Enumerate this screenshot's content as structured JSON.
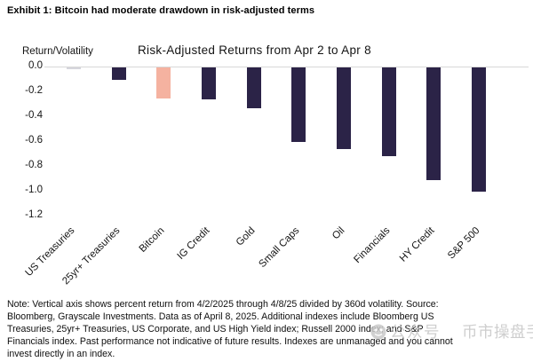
{
  "header": {
    "exhibit_title": "Exhibit 1: Bitcoin had moderate drawdown in risk-adjusted terms"
  },
  "chart_data": {
    "type": "bar",
    "title": "Risk-Adjusted Returns from Apr 2 to Apr 8",
    "ylabel": "Return/Volatility",
    "xlabel": "",
    "categories": [
      "US Treasuries",
      "25yr+ Treasuries",
      "Bitcoin",
      "IG Credit",
      "Gold",
      "Small Caps",
      "Oil",
      "Financials",
      "HY Credit",
      "S&P 500"
    ],
    "values": [
      0.0,
      -0.1,
      -0.25,
      -0.26,
      -0.33,
      -0.6,
      -0.66,
      -0.72,
      -0.91,
      -1.0
    ],
    "highlight_category": "Bitcoin",
    "ylim": [
      -1.2,
      0.0
    ],
    "yticks": [
      "0.0",
      "-0.2",
      "-0.4",
      "-0.6",
      "-0.8",
      "-1.0",
      "-1.2"
    ],
    "grid": "zero-line-only",
    "legend": "none",
    "colors": {
      "bar": "#2b2347",
      "highlight": "#f5b2a0",
      "zero_value_bar": "#d6d6dc",
      "zero_line": "#d8d8d8"
    }
  },
  "note": {
    "lines": [
      "Note: Vertical axis shows percent return from 4/2/2025 through 4/8/25 divided by 360d volatility. Source:",
      "Bloomberg, Grayscale Investments. Data as of April 8, 2025. Additional indexes include Bloomberg US",
      "Treasuries, 25yr+ Treasuries, US Corporate, and US High Yield index; Russell 2000 index; and S&P",
      "Financials index. Past performance not indicative of future results. Indexes are unmanaged and you cannot",
      "invest directly in an index."
    ]
  },
  "watermark": {
    "prefix": "公众号",
    "name": "币市操盘手",
    "icon": "watermark-logo-icon"
  }
}
